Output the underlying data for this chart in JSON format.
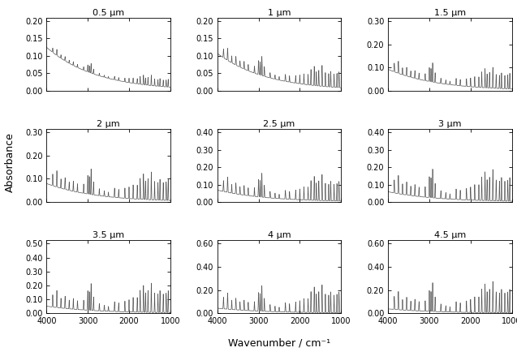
{
  "titles": [
    "0.5 μm",
    "1 μm",
    "1.5 μm",
    "2 μm",
    "2.5 μm",
    "3 μm",
    "3.5 μm",
    "4 μm",
    "4.5 μm"
  ],
  "thicknesses": [
    0.5,
    1.0,
    1.5,
    2.0,
    2.5,
    3.0,
    3.5,
    4.0,
    4.5
  ],
  "xlabel": "Wavenumber / cm⁻¹",
  "ylabel": "Absorbance",
  "xlim": [
    4000,
    1000
  ],
  "yticks_per_panel": [
    [
      0.0,
      0.05,
      0.1,
      0.15,
      0.2
    ],
    [
      0.0,
      0.05,
      0.1,
      0.15,
      0.2
    ],
    [
      0.0,
      0.1,
      0.2,
      0.3
    ],
    [
      0.0,
      0.1,
      0.2,
      0.3
    ],
    [
      0.0,
      0.1,
      0.2,
      0.3,
      0.4
    ],
    [
      0.0,
      0.1,
      0.2,
      0.3,
      0.4
    ],
    [
      0.0,
      0.1,
      0.2,
      0.3,
      0.4,
      0.5
    ],
    [
      0.0,
      0.2,
      0.4,
      0.6
    ],
    [
      0.0,
      0.2,
      0.4,
      0.6
    ]
  ],
  "line_color": "#555555",
  "line_width": 0.5,
  "fig_facecolor": "#ffffff",
  "title_fontsize": 8,
  "axis_fontsize": 7,
  "label_fontsize": 9
}
